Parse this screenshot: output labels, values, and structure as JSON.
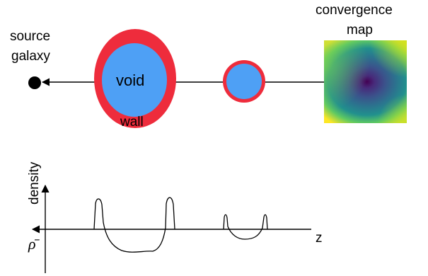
{
  "labels": {
    "source_line1": "source",
    "source_line2": "galaxy",
    "void": "void",
    "wall": "wall",
    "convergence_line1": "convergence",
    "convergence_line2": "map",
    "density_axis": "density",
    "z_axis": "z",
    "mean_density": "ρ̄"
  },
  "colors": {
    "wall": "#ee2c3c",
    "void": "#4ea0f5",
    "line": "#000000",
    "map_low": "#440154",
    "map_mid": "#21908d",
    "map_high": "#fde725"
  }
}
